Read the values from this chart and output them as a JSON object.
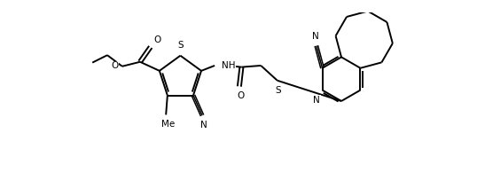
{
  "bg_color": "#ffffff",
  "line_color": "#000000",
  "lw": 1.4,
  "lw_thin": 1.1,
  "fs": 7.5,
  "figsize": [
    5.38,
    2.12
  ],
  "dpi": 100,
  "xlim": [
    -0.5,
    5.9
  ],
  "ylim": [
    -0.6,
    1.6
  ]
}
